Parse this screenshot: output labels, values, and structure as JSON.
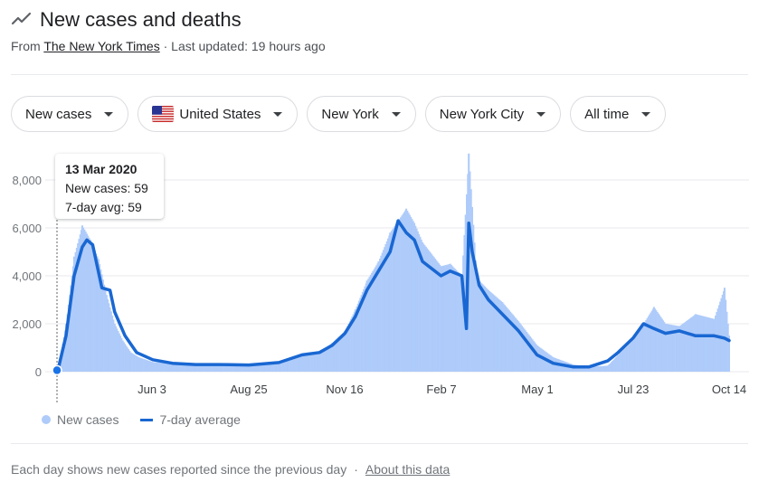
{
  "header": {
    "title": "New cases and deaths"
  },
  "source": {
    "prefix": "From",
    "link": "The New York Times",
    "separator": "·",
    "updated": "Last updated: 19 hours ago"
  },
  "filters": {
    "metric": "New cases",
    "country": "United States",
    "state": "New York",
    "city": "New York City",
    "range": "All time"
  },
  "tooltip": {
    "date": "13 Mar 2020",
    "new_cases": "New cases: 59",
    "avg": "7-day avg: 59"
  },
  "legend": {
    "bars": "New cases",
    "line": "7-day average"
  },
  "footer": {
    "note": "Each day shows new cases reported since the previous day",
    "separator": "·",
    "about": "About this data"
  },
  "colors": {
    "bars": "#aecbfa",
    "line": "#1967d2",
    "accent": "#1a73e8"
  },
  "chart_data": {
    "type": "bar",
    "title": "",
    "xlabel": "",
    "ylabel": "",
    "ylim": [
      0,
      9000
    ],
    "y_ticks": [
      "0",
      "2,000",
      "4,000",
      "6,000",
      "8,000"
    ],
    "x_ticks": [
      "Jun 3",
      "Aug 25",
      "Nov 16",
      "Feb 7",
      "May 1",
      "Jul 23",
      "Oct 14"
    ],
    "grid": true,
    "legend_position": "bottom-left",
    "series": [
      {
        "name": "New cases",
        "kind": "bar",
        "x": [
          "2020-03-13",
          "2020-03-20",
          "2020-03-27",
          "2020-04-03",
          "2020-04-10",
          "2020-04-17",
          "2020-04-24",
          "2020-05-01",
          "2020-05-08",
          "2020-05-15",
          "2020-05-22",
          "2020-06-03",
          "2020-06-20",
          "2020-07-10",
          "2020-07-30",
          "2020-08-25",
          "2020-09-20",
          "2020-10-10",
          "2020-10-25",
          "2020-11-05",
          "2020-11-16",
          "2020-11-25",
          "2020-12-05",
          "2020-12-15",
          "2020-12-25",
          "2021-01-01",
          "2021-01-08",
          "2021-01-15",
          "2021-01-22",
          "2021-02-07",
          "2021-02-15",
          "2021-02-25",
          "2021-03-03",
          "2021-03-10",
          "2021-03-20",
          "2021-04-01",
          "2021-04-15",
          "2021-05-01",
          "2021-05-15",
          "2021-06-01",
          "2021-06-15",
          "2021-07-01",
          "2021-07-10",
          "2021-07-23",
          "2021-08-01",
          "2021-08-10",
          "2021-08-20",
          "2021-09-01",
          "2021-09-15",
          "2021-10-01",
          "2021-10-10",
          "2021-10-14"
        ],
        "values": [
          59,
          2000,
          4800,
          6100,
          5500,
          4700,
          3200,
          2000,
          1300,
          800,
          600,
          400,
          330,
          280,
          310,
          280,
          380,
          700,
          800,
          1200,
          1700,
          2600,
          3800,
          4600,
          5800,
          6300,
          6800,
          6200,
          5400,
          4400,
          4500,
          4000,
          9100,
          3900,
          3400,
          2900,
          2100,
          1100,
          600,
          300,
          200,
          250,
          700,
          1300,
          2000,
          2700,
          2000,
          1900,
          2400,
          2200,
          3500,
          1500
        ]
      },
      {
        "name": "7-day average",
        "kind": "line",
        "x": [
          "2020-03-13",
          "2020-03-20",
          "2020-03-27",
          "2020-04-03",
          "2020-04-07",
          "2020-04-12",
          "2020-04-20",
          "2020-04-27",
          "2020-05-01",
          "2020-05-10",
          "2020-05-20",
          "2020-06-03",
          "2020-06-20",
          "2020-07-10",
          "2020-07-30",
          "2020-08-25",
          "2020-09-20",
          "2020-10-10",
          "2020-10-25",
          "2020-11-05",
          "2020-11-16",
          "2020-11-25",
          "2020-12-05",
          "2020-12-15",
          "2020-12-25",
          "2021-01-01",
          "2021-01-08",
          "2021-01-15",
          "2021-01-22",
          "2021-02-07",
          "2021-02-15",
          "2021-02-25",
          "2021-03-01",
          "2021-03-03",
          "2021-03-06",
          "2021-03-12",
          "2021-03-20",
          "2021-04-01",
          "2021-04-15",
          "2021-05-01",
          "2021-05-15",
          "2021-06-01",
          "2021-06-15",
          "2021-07-01",
          "2021-07-10",
          "2021-07-23",
          "2021-08-01",
          "2021-08-10",
          "2021-08-20",
          "2021-09-01",
          "2021-09-15",
          "2021-10-01",
          "2021-10-10",
          "2021-10-14"
        ],
        "values": [
          59,
          1500,
          4000,
          5200,
          5500,
          5300,
          3500,
          3400,
          2500,
          1500,
          800,
          500,
          350,
          300,
          300,
          280,
          380,
          700,
          800,
          1100,
          1600,
          2300,
          3400,
          4200,
          5000,
          6300,
          5800,
          5500,
          4600,
          4000,
          4200,
          4000,
          1800,
          6200,
          5000,
          3600,
          3000,
          2400,
          1700,
          700,
          350,
          200,
          200,
          450,
          800,
          1400,
          2000,
          1800,
          1600,
          1700,
          1500,
          1500,
          1400,
          1300
        ]
      }
    ]
  }
}
